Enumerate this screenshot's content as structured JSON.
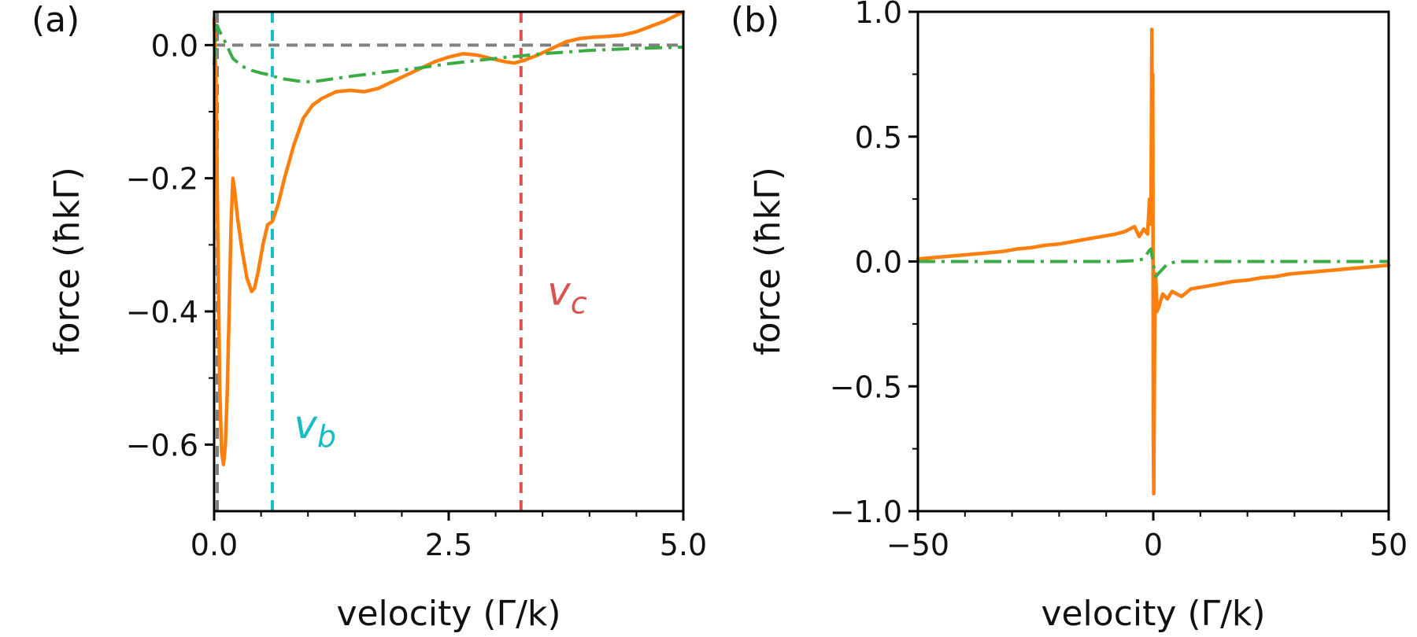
{
  "colors": {
    "orange": "#ff7f0e",
    "green": "#3bab46",
    "cyan": "#17bcc6",
    "red": "#d9534f",
    "gray": "#808080",
    "axis": "#000000"
  },
  "chart_data": [
    {
      "type": "line",
      "panel_label": "(a)",
      "xlabel": "velocity (Γ/k)",
      "ylabel": "force (ħkΓ)",
      "xlim": [
        0.0,
        5.0
      ],
      "ylim": [
        -0.7,
        0.05
      ],
      "xticks": [
        0.0,
        2.5,
        5.0
      ],
      "xtick_labels": [
        "0.0",
        "2.5",
        "5.0"
      ],
      "yticks": [
        0.0,
        -0.2,
        -0.4,
        -0.6
      ],
      "ytick_labels": [
        "0.0",
        "−0.2",
        "−0.4",
        "−0.6"
      ],
      "reference_lines": [
        {
          "orientation": "horizontal",
          "value": 0.0,
          "color": "gray",
          "style": "dashed"
        },
        {
          "orientation": "vertical",
          "value": 0.0,
          "color": "gray",
          "style": "dashed"
        },
        {
          "orientation": "vertical",
          "value": 0.62,
          "color": "cyan",
          "style": "dashed",
          "label": "v_b"
        },
        {
          "orientation": "vertical",
          "value": 3.27,
          "color": "red",
          "style": "dashed",
          "label": "v_c"
        }
      ],
      "annotations": [
        {
          "text": "v",
          "sub": "b",
          "x": 0.85,
          "y": -0.59,
          "color": "cyan"
        },
        {
          "text": "v",
          "sub": "c",
          "x": 3.55,
          "y": -0.39,
          "color": "red"
        }
      ],
      "series": [
        {
          "name": "orange",
          "color": "orange",
          "style": "solid",
          "x": [
            0.0,
            0.02,
            0.04,
            0.06,
            0.08,
            0.1,
            0.12,
            0.14,
            0.16,
            0.18,
            0.2,
            0.22,
            0.25,
            0.3,
            0.35,
            0.4,
            0.43,
            0.47,
            0.52,
            0.57,
            0.62,
            0.68,
            0.75,
            0.85,
            0.95,
            1.05,
            1.15,
            1.3,
            1.45,
            1.6,
            1.75,
            1.9,
            2.05,
            2.2,
            2.35,
            2.5,
            2.65,
            2.8,
            2.95,
            3.1,
            3.2,
            3.3,
            3.45,
            3.6,
            3.75,
            3.9,
            4.05,
            4.2,
            4.35,
            4.5,
            4.65,
            4.8,
            5.0
          ],
          "y": [
            0.04,
            -0.05,
            -0.3,
            -0.52,
            -0.61,
            -0.63,
            -0.6,
            -0.52,
            -0.4,
            -0.27,
            -0.2,
            -0.22,
            -0.26,
            -0.31,
            -0.35,
            -0.37,
            -0.365,
            -0.34,
            -0.3,
            -0.27,
            -0.265,
            -0.24,
            -0.2,
            -0.15,
            -0.11,
            -0.09,
            -0.08,
            -0.07,
            -0.068,
            -0.07,
            -0.065,
            -0.055,
            -0.045,
            -0.035,
            -0.025,
            -0.018,
            -0.013,
            -0.015,
            -0.02,
            -0.025,
            -0.027,
            -0.023,
            -0.015,
            -0.005,
            0.005,
            0.01,
            0.012,
            0.013,
            0.015,
            0.02,
            0.028,
            0.036,
            0.05
          ]
        },
        {
          "name": "green",
          "color": "green",
          "style": "dashdot",
          "x": [
            0.0,
            0.03,
            0.06,
            0.1,
            0.15,
            0.2,
            0.3,
            0.4,
            0.5,
            0.6,
            0.7,
            0.8,
            0.9,
            1.0,
            1.1,
            1.3,
            1.5,
            1.8,
            2.1,
            2.5,
            3.0,
            3.5,
            4.0,
            4.5,
            5.0
          ],
          "y": [
            -0.03,
            0.03,
            0.02,
            0.01,
            -0.005,
            -0.02,
            -0.032,
            -0.038,
            -0.042,
            -0.045,
            -0.05,
            -0.052,
            -0.054,
            -0.055,
            -0.054,
            -0.05,
            -0.046,
            -0.041,
            -0.036,
            -0.028,
            -0.02,
            -0.013,
            -0.008,
            -0.005,
            -0.003
          ]
        }
      ]
    },
    {
      "type": "line",
      "panel_label": "(b)",
      "xlabel": "velocity (Γ/k)",
      "ylabel": "force (ħkΓ)",
      "xlim": [
        -50,
        50
      ],
      "ylim": [
        -1.0,
        1.0
      ],
      "xticks": [
        -50,
        0,
        50
      ],
      "xtick_labels": [
        "−50",
        "0",
        "50"
      ],
      "yticks": [
        1.0,
        0.5,
        0.0,
        -0.5,
        -1.0
      ],
      "ytick_labels": [
        "1.0",
        "0.5",
        "0.0",
        "−0.5",
        "−1.0"
      ],
      "series": [
        {
          "name": "orange",
          "color": "orange",
          "style": "solid",
          "x": [
            -50,
            -47,
            -44,
            -41,
            -38,
            -35,
            -32,
            -29,
            -26,
            -23,
            -20,
            -17,
            -14,
            -11,
            -8,
            -6,
            -4,
            -3,
            -2,
            -1.2,
            -0.8,
            -0.5,
            -0.3,
            -0.2,
            -0.1,
            0.0,
            0.1,
            0.2,
            0.3,
            0.5,
            0.8,
            1.2,
            2,
            3,
            4,
            6,
            8,
            11,
            14,
            17,
            20,
            23,
            26,
            29,
            32,
            35,
            38,
            41,
            44,
            47,
            50
          ],
          "y": [
            0.01,
            0.015,
            0.02,
            0.025,
            0.03,
            0.035,
            0.04,
            0.05,
            0.055,
            0.065,
            0.07,
            0.08,
            0.09,
            0.1,
            0.11,
            0.12,
            0.14,
            0.1,
            0.13,
            0.11,
            0.25,
            0.15,
            0.93,
            0.5,
            0.75,
            -0.7,
            -0.93,
            -0.6,
            -0.3,
            -0.05,
            -0.2,
            -0.18,
            -0.13,
            -0.15,
            -0.12,
            -0.14,
            -0.11,
            -0.1,
            -0.09,
            -0.08,
            -0.075,
            -0.065,
            -0.06,
            -0.05,
            -0.045,
            -0.04,
            -0.035,
            -0.03,
            -0.025,
            -0.02,
            -0.015
          ]
        },
        {
          "name": "green",
          "color": "green",
          "style": "dashdot",
          "x": [
            -50,
            -30,
            -15,
            -8,
            -4,
            -2,
            -1,
            -0.5,
            0.0,
            0.5,
            1,
            2,
            3,
            5,
            10,
            20,
            30,
            50
          ],
          "y": [
            0.0,
            0.0,
            0.0,
            0.0,
            0.003,
            0.01,
            0.04,
            0.05,
            -0.01,
            -0.06,
            -0.05,
            -0.03,
            -0.01,
            0.0,
            0.0,
            0.0,
            0.0,
            0.0
          ]
        }
      ]
    }
  ]
}
